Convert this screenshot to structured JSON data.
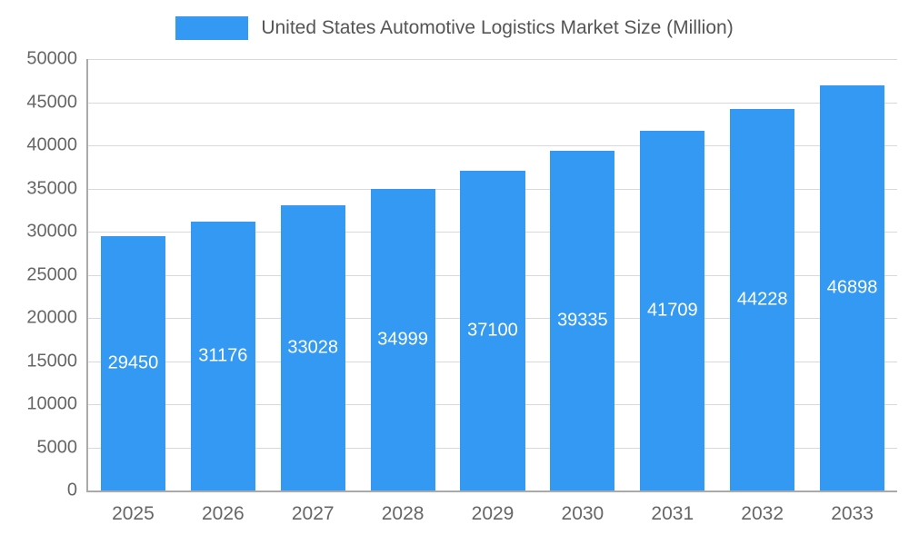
{
  "chart_data": {
    "type": "bar",
    "title": "United States Automotive Logistics Market Size (Million)",
    "categories": [
      "2025",
      "2026",
      "2027",
      "2028",
      "2029",
      "2030",
      "2031",
      "2032",
      "2033"
    ],
    "values": [
      29450,
      31176,
      33028,
      34999,
      37100,
      39335,
      41709,
      44228,
      46898
    ],
    "xlabel": "",
    "ylabel": "",
    "ylim": [
      0,
      50000
    ],
    "ytick_step": 5000,
    "ytick_labels": [
      "0",
      "5000",
      "10000",
      "15000",
      "20000",
      "25000",
      "30000",
      "35000",
      "40000",
      "45000",
      "50000"
    ],
    "grid": true,
    "legend_position": "top-center",
    "colors": {
      "bar": "#3399f2",
      "value_label": "#ffffff",
      "axis_text": "#666666",
      "gridline": "#d9d9d9",
      "legend_text": "#555555"
    }
  }
}
